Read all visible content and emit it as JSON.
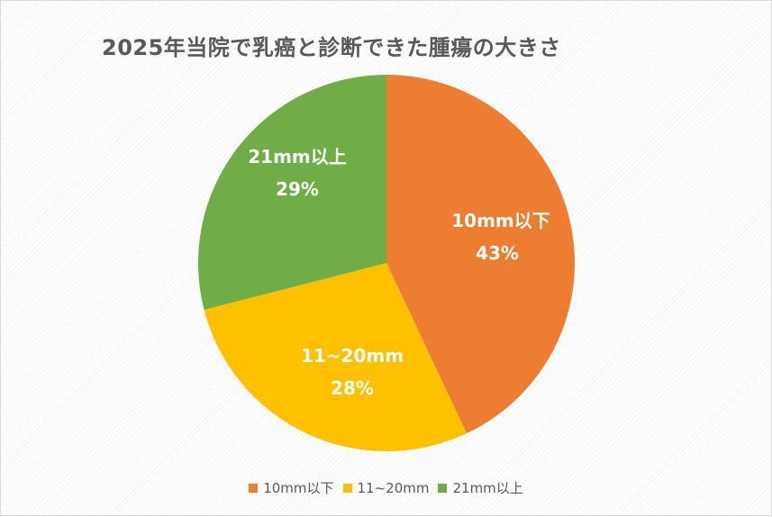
{
  "chart_data": {
    "type": "pie",
    "title": "2025年当院で乳癌と診断できた腫瘍の大きさ",
    "categories": [
      "10mm以下",
      "11~20mm",
      "21mm以上"
    ],
    "values": [
      43,
      28,
      29
    ],
    "unit": "%",
    "data_labels": [
      "43%",
      "28%",
      "29%"
    ],
    "colors": [
      "#ED7D31",
      "#FFC000",
      "#70AD47"
    ],
    "start_angle_deg": 0,
    "direction": "clockwise",
    "legend_position": "bottom"
  },
  "title": "2025年当院で乳癌と診断できた腫瘍の大きさ",
  "labels": [
    {
      "name": "10mm以下",
      "pct": "43%"
    },
    {
      "name": "11~20mm",
      "pct": "28%"
    },
    {
      "name": "21mm以上",
      "pct": "29%"
    }
  ],
  "legend": [
    {
      "label": "10mm以下",
      "color": "#ED7D31"
    },
    {
      "label": "11~20mm",
      "color": "#FFC000"
    },
    {
      "label": "21mm以上",
      "color": "#70AD47"
    }
  ]
}
